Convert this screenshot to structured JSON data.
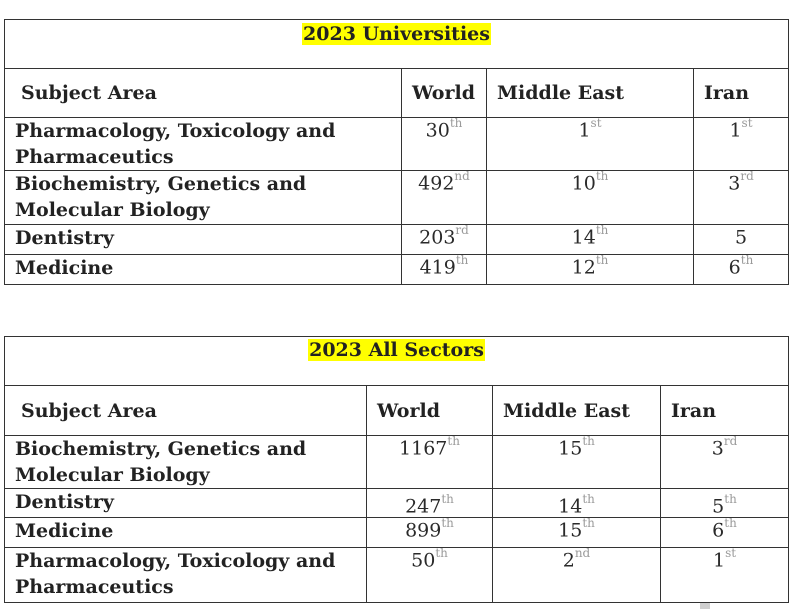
{
  "table1": {
    "title": "2023  Universities",
    "headers": [
      "Subject Area",
      "World",
      "Middle East",
      "Iran"
    ],
    "rows": [
      {
        "subject": "Pharmacology, Toxicology and Pharmaceutics",
        "world": "30",
        "world_sfx": "th",
        "me": "1",
        "me_sfx": "st",
        "iran": "1",
        "iran_sfx": "st"
      },
      {
        "subject": "Biochemistry, Genetics and Molecular Biology",
        "world": "492",
        "world_sfx": "nd",
        "me": "10",
        "me_sfx": "th",
        "iran": "3",
        "iran_sfx": "rd"
      },
      {
        "subject": "Dentistry",
        "world": "203",
        "world_sfx": "rd",
        "me": "14",
        "me_sfx": "th",
        "iran": "5",
        "iran_sfx": ""
      },
      {
        "subject": "Medicine",
        "world": "419",
        "world_sfx": "th",
        "me": "12",
        "me_sfx": "th",
        "iran": "6",
        "iran_sfx": "th"
      }
    ]
  },
  "table2": {
    "title": "2023 All Sectors",
    "headers": [
      "Subject Area",
      "World",
      "Middle East",
      "Iran"
    ],
    "rows": [
      {
        "subject": "Biochemistry, Genetics and Molecular Biology",
        "world": "1167",
        "world_sfx": "th",
        "me": "15",
        "me_sfx": "th",
        "iran": "3",
        "iran_sfx": "rd"
      },
      {
        "subject": "Dentistry",
        "world": "247",
        "world_sfx": "th",
        "me": "14",
        "me_sfx": "th",
        "iran": "5",
        "iran_sfx": "th"
      },
      {
        "subject": "Medicine",
        "world": "899",
        "world_sfx": "th",
        "me": "15",
        "me_sfx": "th",
        "iran": "6",
        "iran_sfx": "th"
      },
      {
        "subject": "Pharmacology, Toxicology and Pharmaceutics",
        "world": "50",
        "world_sfx": "th",
        "me": "2",
        "me_sfx": "nd",
        "iran": "1",
        "iran_sfx": "st"
      }
    ]
  }
}
